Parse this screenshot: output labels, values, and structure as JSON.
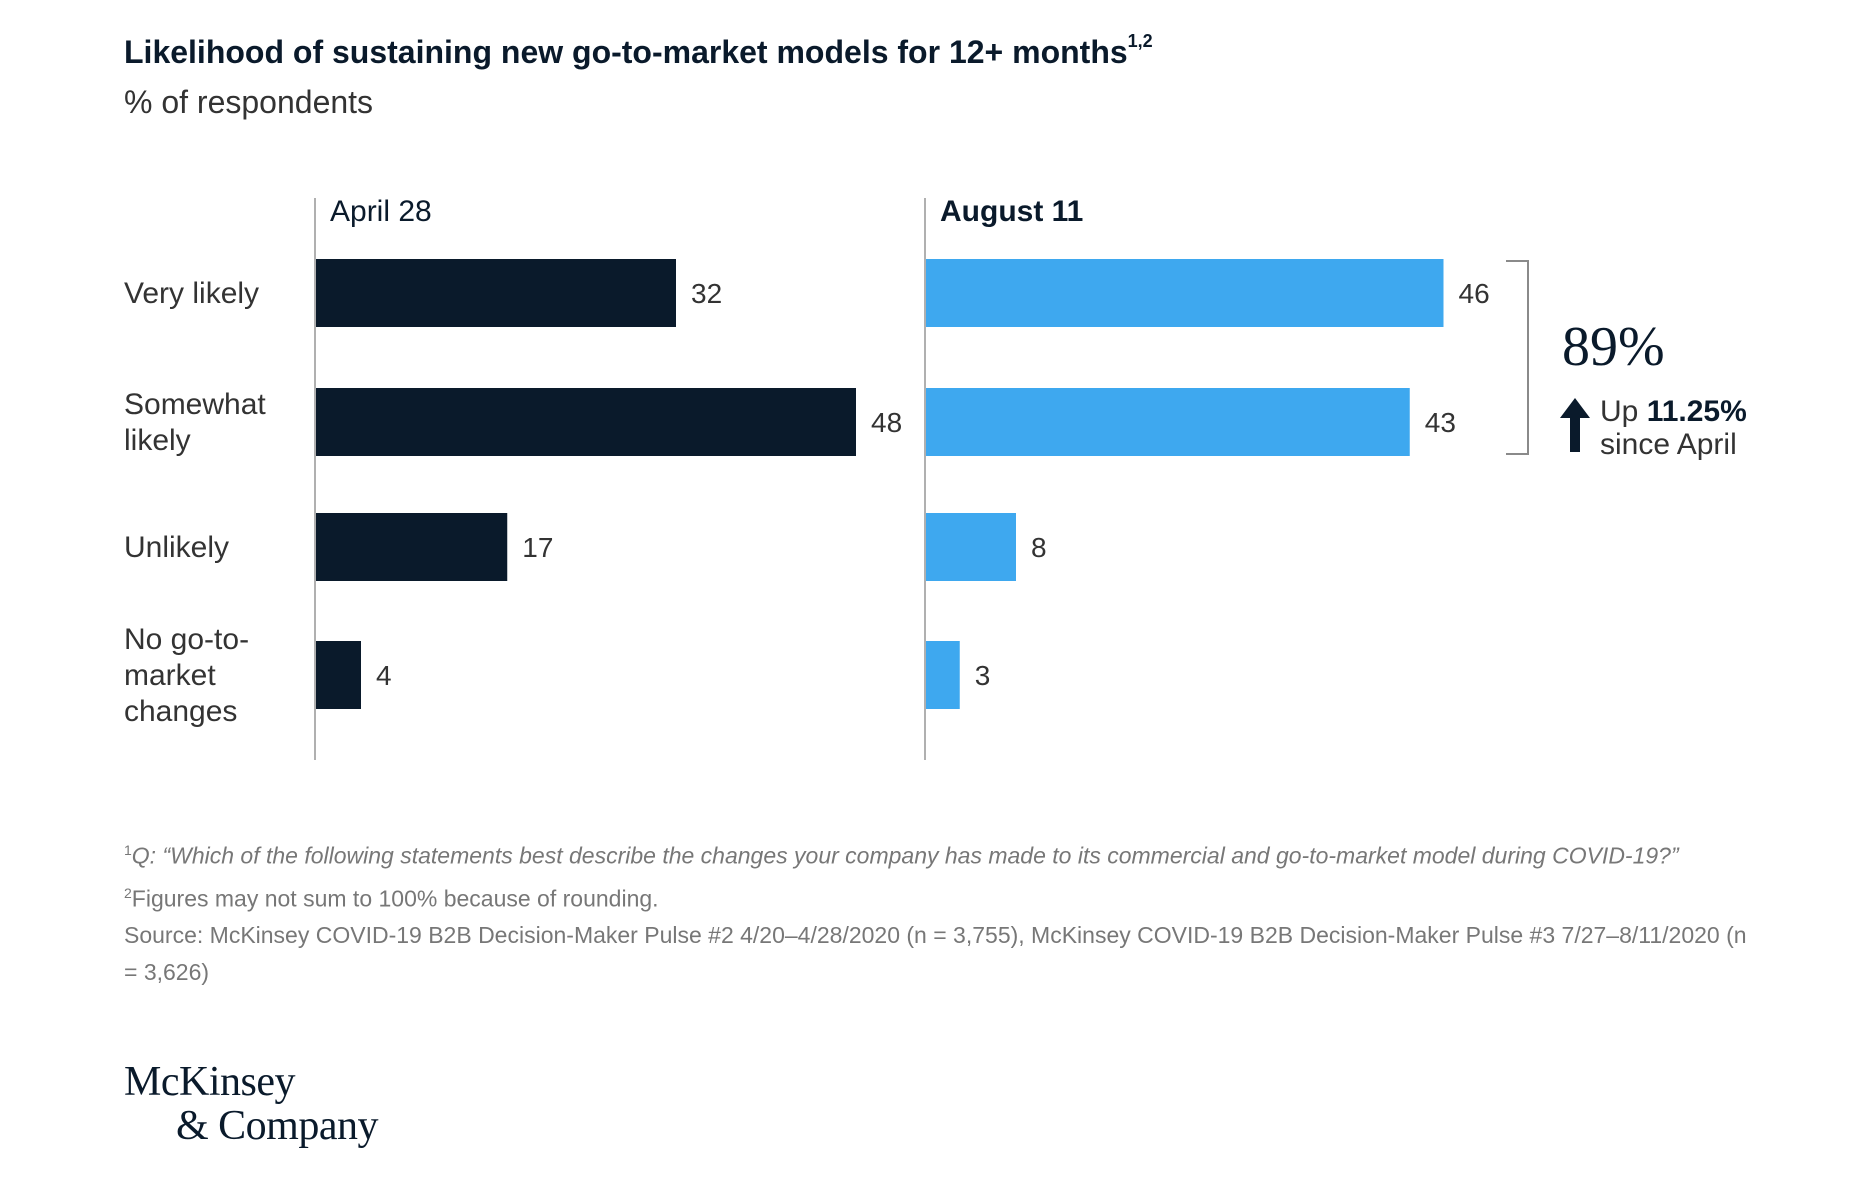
{
  "title": "Likelihood of sustaining new go-to-market models for 12+ months",
  "title_superscript": "1,2",
  "subtitle": "% of respondents",
  "chart_data": {
    "type": "bar",
    "orientation": "horizontal",
    "categories": [
      "Very likely",
      "Somewhat likely",
      "Unlikely",
      "No go-to-market changes"
    ],
    "category_lines": [
      [
        "Very likely"
      ],
      [
        "Somewhat",
        "likely"
      ],
      [
        "Unlikely"
      ],
      [
        "No go-to-",
        "market",
        "changes"
      ]
    ],
    "series": [
      {
        "name": "April 28",
        "values": [
          32,
          48,
          17,
          4
        ],
        "color": "#0a1a2b"
      },
      {
        "name": "August 11",
        "values": [
          46,
          43,
          8,
          3
        ],
        "color": "#3ea8ef"
      }
    ],
    "xlim": [
      0,
      50
    ],
    "annotation": {
      "bracket_categories": [
        "Very likely",
        "Somewhat likely"
      ],
      "big_value": "89%",
      "arrow": "up",
      "line1_prefix": "Up",
      "line1_bold": "11.25%",
      "line2": "since April"
    }
  },
  "footnotes": {
    "note1_marker": "1",
    "note1_prefix": "Q: ",
    "note1_text": "“Which of the following statements best describe the changes your company has made to its commercial and go-to-market model during COVID-19?”",
    "note2_marker": "2",
    "note2_text": "Figures may not sum to 100% because of rounding.",
    "source": "Source: McKinsey COVID-19 B2B Decision-Maker Pulse #2 4/20–4/28/2020 (n = 3,755), McKinsey COVID-19 B2B Decision-Maker Pulse #3 7/27–8/11/2020 (n = 3,626)"
  },
  "logo": {
    "line1": "McKinsey",
    "line2": "& Company"
  }
}
